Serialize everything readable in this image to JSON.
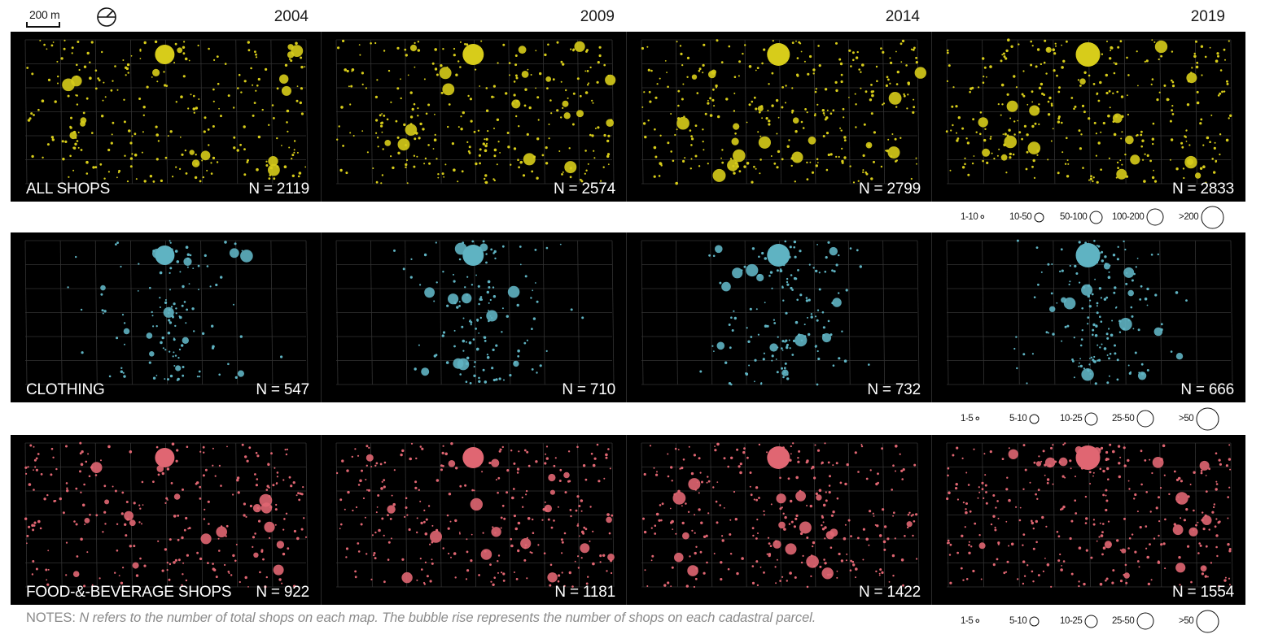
{
  "header": {
    "scale_label": "200 m",
    "north_icon": "north-arrow-icon",
    "years": [
      "2004",
      "2009",
      "2014",
      "2019"
    ]
  },
  "rows": [
    {
      "id": "all",
      "category": "ALL SHOPS",
      "color": "#d7cc1a",
      "n_values": [
        "N = 2119",
        "N = 2574",
        "N = 2799",
        "N = 2833"
      ]
    },
    {
      "id": "clothing",
      "category": "CLOTHING",
      "color": "#5fb3c2",
      "n_values": [
        "N = 547",
        "N = 710",
        "N = 732",
        "N = 666"
      ]
    },
    {
      "id": "food",
      "category": "FOOD-&-BEVERAGE SHOPS",
      "color": "#e06672",
      "n_values": [
        "N = 922",
        "N = 1181",
        "N = 1422",
        "N = 1554"
      ]
    }
  ],
  "legends": [
    {
      "id": "all",
      "items": [
        {
          "label": "1-10",
          "size": 1
        },
        {
          "label": "10-50",
          "size": 2
        },
        {
          "label": "50-100",
          "size": 3
        },
        {
          "label": "100-200",
          "size": 4
        },
        {
          "label": ">200",
          "size": 5
        }
      ]
    },
    {
      "id": "clothing",
      "items": [
        {
          "label": "1-5",
          "size": 1
        },
        {
          "label": "5-10",
          "size": 2
        },
        {
          "label": "10-25",
          "size": 3
        },
        {
          "label": "25-50",
          "size": 4
        },
        {
          "label": ">50",
          "size": 5
        }
      ]
    },
    {
      "id": "food",
      "items": [
        {
          "label": "1-5",
          "size": 1
        },
        {
          "label": "5-10",
          "size": 2
        },
        {
          "label": "10-25",
          "size": 3
        },
        {
          "label": "25-50",
          "size": 4
        },
        {
          "label": ">50",
          "size": 5
        }
      ]
    }
  ],
  "notes": {
    "prefix": "NOTES:",
    "text": "N refers to the number of total shops on each map. The bubble rise represents the number of shops on each cadastral parcel."
  },
  "colors": {
    "background": "#000000",
    "grid": "#3a3a3a",
    "text_on_map": "#ffffff",
    "notes": "#8a8a8a"
  }
}
